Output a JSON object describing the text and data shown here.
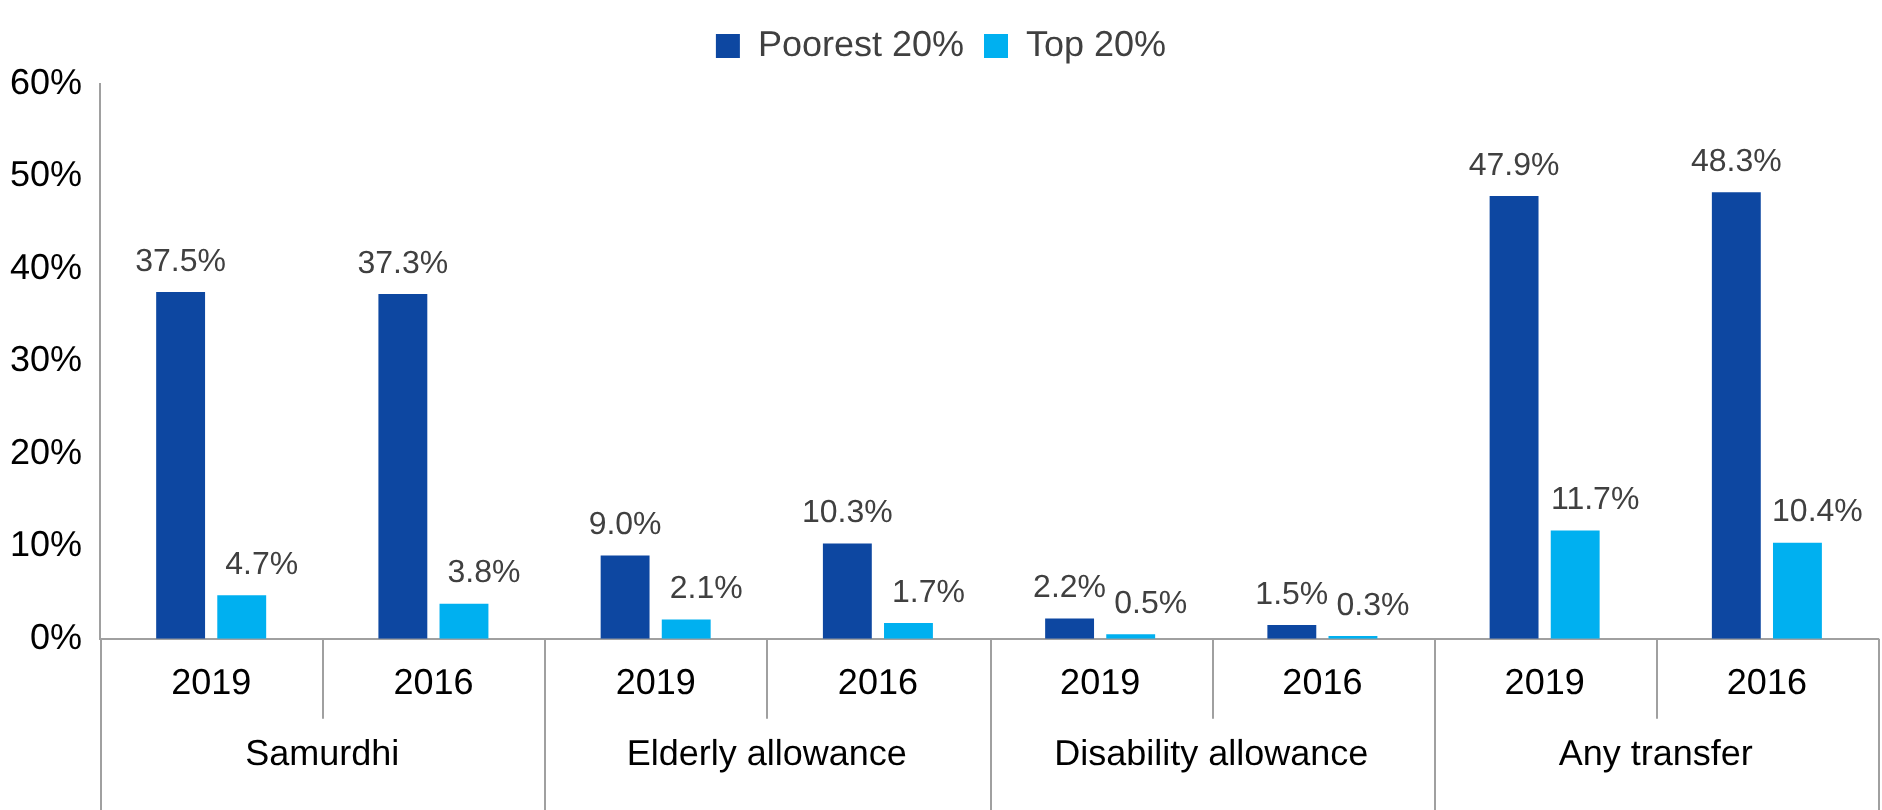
{
  "chart_data": {
    "type": "bar",
    "categories": [
      "2019",
      "2016",
      "2019",
      "2016",
      "2019",
      "2016",
      "2019",
      "2016"
    ],
    "annotations": [
      "Samurdhi",
      "Elderly allowance",
      "Disability allowance",
      "Any transfer"
    ],
    "series": [
      {
        "name": "Poorest 20%",
        "color": "#0d47a1",
        "values": [
          37.5,
          37.3,
          9.0,
          10.3,
          2.2,
          1.5,
          47.9,
          48.3
        ],
        "value_labels": [
          "37.5%",
          "37.3%",
          "9.0%",
          "10.3%",
          "2.2%",
          "1.5%",
          "47.9%",
          "48.3%"
        ]
      },
      {
        "name": "Top 20%",
        "color": "#00b0f0",
        "values": [
          4.7,
          3.8,
          2.1,
          1.7,
          0.5,
          0.3,
          11.7,
          10.4
        ],
        "value_labels": [
          "4.7%",
          "3.8%",
          "2.1%",
          "1.7%",
          "0.5%",
          "0.3%",
          "11.7%",
          "10.4%"
        ]
      }
    ],
    "ylim": [
      0,
      60
    ],
    "yticks": [
      {
        "value": 0,
        "label": "0%"
      },
      {
        "value": 10,
        "label": "10%"
      },
      {
        "value": 20,
        "label": "20%"
      },
      {
        "value": 30,
        "label": "30%"
      },
      {
        "value": 40,
        "label": "40%"
      },
      {
        "value": 50,
        "label": "50%"
      },
      {
        "value": 60,
        "label": "60%"
      }
    ],
    "grid": false,
    "legend": "top"
  }
}
